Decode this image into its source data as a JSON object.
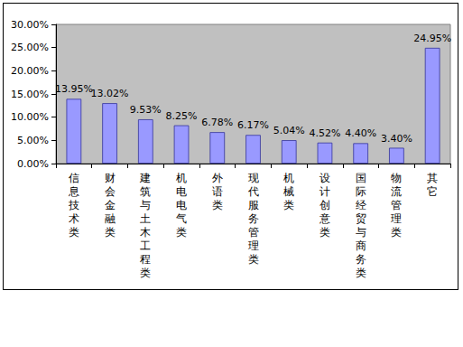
{
  "chart_data": {
    "type": "bar",
    "categories": [
      "信息技术类",
      "财会金融类",
      "建筑与土木工程类",
      "机电电气类",
      "外语类",
      "现代服务管理类",
      "机械类",
      "设计创意类",
      "国际经贸与商务类",
      "物流管理类",
      "其它"
    ],
    "values": [
      13.95,
      13.02,
      9.53,
      8.25,
      6.78,
      6.17,
      5.04,
      4.52,
      4.4,
      3.4,
      24.95
    ],
    "value_labels": [
      "13.95%",
      "13.02%",
      "9.53%",
      "8.25%",
      "6.78%",
      "6.17%",
      "5.04%",
      "4.52%",
      "4.40%",
      "3.40%",
      "24.95%"
    ],
    "color": "#9999ff",
    "ylim": [
      0,
      30
    ],
    "yticks": [
      {
        "value": 0,
        "label": "0.00%"
      },
      {
        "value": 5,
        "label": "5.00%"
      },
      {
        "value": 10,
        "label": "10.00%"
      },
      {
        "value": 15,
        "label": "15.00%"
      },
      {
        "value": 20,
        "label": "20.00%"
      },
      {
        "value": 25,
        "label": "25.00%"
      },
      {
        "value": 30,
        "label": "30.00%"
      }
    ],
    "grid": false,
    "data_labels": true
  }
}
